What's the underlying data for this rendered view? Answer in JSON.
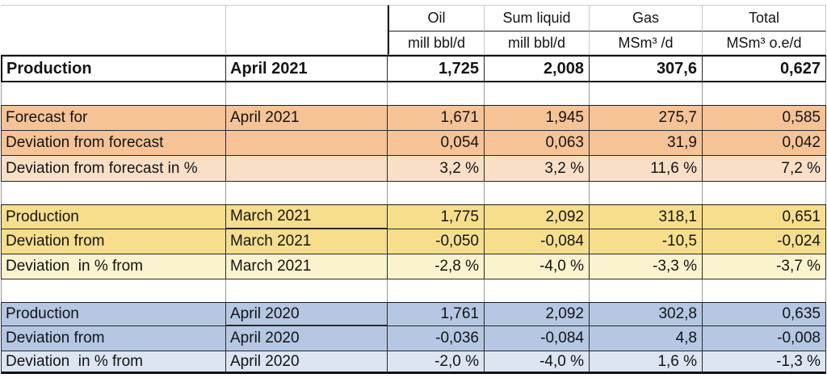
{
  "header": {
    "columns": [
      "Oil",
      "Sum liquid",
      "Gas",
      "Total"
    ],
    "units": [
      "mill bbl/d",
      "mill bbl/d",
      "MSm³ /d",
      "MSm³ o.e/d"
    ]
  },
  "production": {
    "label": "Production",
    "period": "April 2021",
    "values": [
      "1,725",
      "2,008",
      "307,6",
      "0,627"
    ]
  },
  "forecast": {
    "rows": [
      {
        "label": "Forecast for",
        "period": "April 2021",
        "values": [
          "1,671",
          "1,945",
          "275,7",
          "0,585"
        ]
      },
      {
        "label": "Deviation from forecast",
        "period": "",
        "values": [
          "0,054",
          "0,063",
          "31,9",
          "0,042"
        ]
      },
      {
        "label": "Deviation from forecast in %",
        "period": "",
        "values": [
          "3,2 %",
          "3,2 %",
          "11,6 %",
          "7,2 %"
        ]
      }
    ]
  },
  "prev_month": {
    "rows": [
      {
        "label": "Production",
        "period": "March 2021",
        "values": [
          "1,775",
          "2,092",
          "318,1",
          "0,651"
        ]
      },
      {
        "label": "Deviation from",
        "period": "March 2021",
        "values": [
          "-0,050",
          "-0,084",
          "-10,5",
          "-0,024"
        ]
      },
      {
        "label": "Deviation  in % from",
        "period": "March 2021",
        "values": [
          "-2,8 %",
          "-4,0 %",
          "-3,3 %",
          "-3,7 %"
        ]
      }
    ]
  },
  "prev_year": {
    "rows": [
      {
        "label": "Production",
        "period": "April 2020",
        "values": [
          "1,761",
          "2,092",
          "302,8",
          "0,635"
        ]
      },
      {
        "label": "Deviation from",
        "period": "April 2020",
        "values": [
          "-0,036",
          "-0,084",
          "4,8",
          "-0,008"
        ]
      },
      {
        "label": "Deviation  in % from",
        "period": "April 2020",
        "values": [
          "-2,0 %",
          "-4,0 %",
          "1,6 %",
          "-1,3 %"
        ]
      }
    ]
  },
  "colors": {
    "header_bg": "#F3EF9E",
    "forecast_bg": "#F6C396",
    "forecast_pct_bg": "#FADFC7",
    "prev_month_bg": "#F6DE8D",
    "prev_month_pct_bg": "#FBF3CD",
    "prev_year_bg": "#B5C7E3",
    "prev_year_pct_bg": "#DCE5F1"
  }
}
